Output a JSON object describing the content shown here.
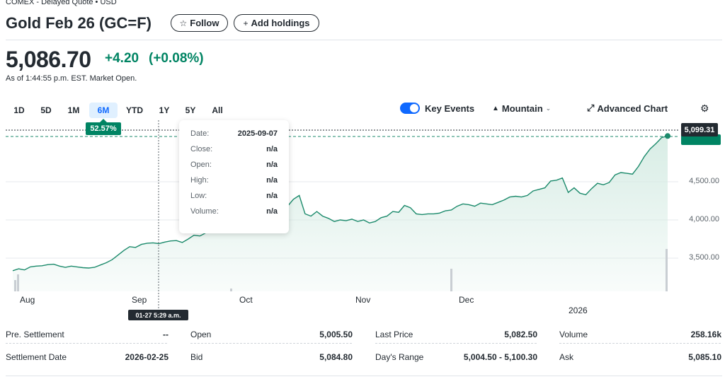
{
  "header": {
    "exchange": "COMEX - Delayed Quote • USD",
    "title": "Gold Feb 26 (GC=F)",
    "follow_label": "Follow",
    "add_holdings_label": "Add holdings"
  },
  "quote": {
    "price": "5,086.70",
    "change": "+4.20",
    "change_pct": "(+0.08%)",
    "as_of": "As of 1:44:55 p.m. EST. Market Open."
  },
  "ranges": [
    "1D",
    "5D",
    "1M",
    "6M",
    "YTD",
    "1Y",
    "5Y",
    "All"
  ],
  "active_range": "6M",
  "controls": {
    "key_events": "Key Events",
    "chart_type": "Mountain",
    "advanced_chart": "Advanced Chart"
  },
  "overlay": {
    "pct_badge": "52.57%",
    "current_price_tag": "5,099.31",
    "hover_time": "01-27 5:29 a.m.",
    "tooltip": [
      {
        "key": "Date:",
        "value": "2025-09-07"
      },
      {
        "key": "Close:",
        "value": "n/a"
      },
      {
        "key": "Open:",
        "value": "n/a"
      },
      {
        "key": "High:",
        "value": "n/a"
      },
      {
        "key": "Low:",
        "value": "n/a"
      },
      {
        "key": "Volume:",
        "value": "n/a"
      }
    ]
  },
  "chart_data": {
    "type": "area",
    "x_tick_labels": [
      "Aug",
      "Sep",
      "Oct",
      "Nov",
      "Dec"
    ],
    "x_secondary_label": "2026",
    "y_tick_labels": [
      "4,500.00",
      "4,000.00",
      "3,500.00"
    ],
    "y_ticks": [
      4500,
      4000,
      3500
    ],
    "ylim": [
      3000,
      5200
    ],
    "grid": true,
    "line_color": "#1b8a6b",
    "fill_color": "#d6ece4",
    "series": [
      {
        "values": [
          3335,
          3360,
          3345,
          3385,
          3395,
          3400,
          3415,
          3420,
          3395,
          3380,
          3395,
          3385,
          3375,
          3370,
          3380,
          3410,
          3440,
          3480,
          3540,
          3600,
          3650,
          3640,
          3680,
          3695,
          3700,
          3690,
          3710,
          3725,
          3730,
          3705,
          3750,
          3800,
          3790,
          3830,
          3860,
          3880,
          3920,
          3950,
          3990,
          4050,
          4080,
          4060,
          4130,
          4180,
          4140,
          4230,
          4280,
          4180,
          4270,
          4320,
          4080,
          4050,
          4110,
          4050,
          4020,
          3980,
          4000,
          3990,
          4010,
          3980,
          4000,
          3960,
          3980,
          4030,
          4050,
          4110,
          4100,
          4190,
          4160,
          4080,
          4070,
          4080,
          4080,
          4090,
          4120,
          4130,
          4180,
          4210,
          4200,
          4180,
          4220,
          4210,
          4200,
          4230,
          4260,
          4300,
          4310,
          4300,
          4320,
          4380,
          4400,
          4420,
          4510,
          4520,
          4550,
          4360,
          4420,
          4350,
          4330,
          4410,
          4480,
          4460,
          4490,
          4590,
          4620,
          4610,
          4600,
          4700,
          4830,
          4930,
          5000,
          5080,
          5099
        ]
      }
    ]
  },
  "stats": [
    {
      "key": "Pre. Settlement",
      "value": "--"
    },
    {
      "key": "Open",
      "value": "5,005.50"
    },
    {
      "key": "Last Price",
      "value": "5,082.50"
    },
    {
      "key": "Volume",
      "value": "258.16k"
    },
    {
      "key": "Settlement Date",
      "value": "2026-02-25"
    },
    {
      "key": "Bid",
      "value": "5,084.80"
    },
    {
      "key": "Day's Range",
      "value": "5,004.50 - 5,100.30"
    },
    {
      "key": "Ask",
      "value": "5,085.10"
    }
  ]
}
